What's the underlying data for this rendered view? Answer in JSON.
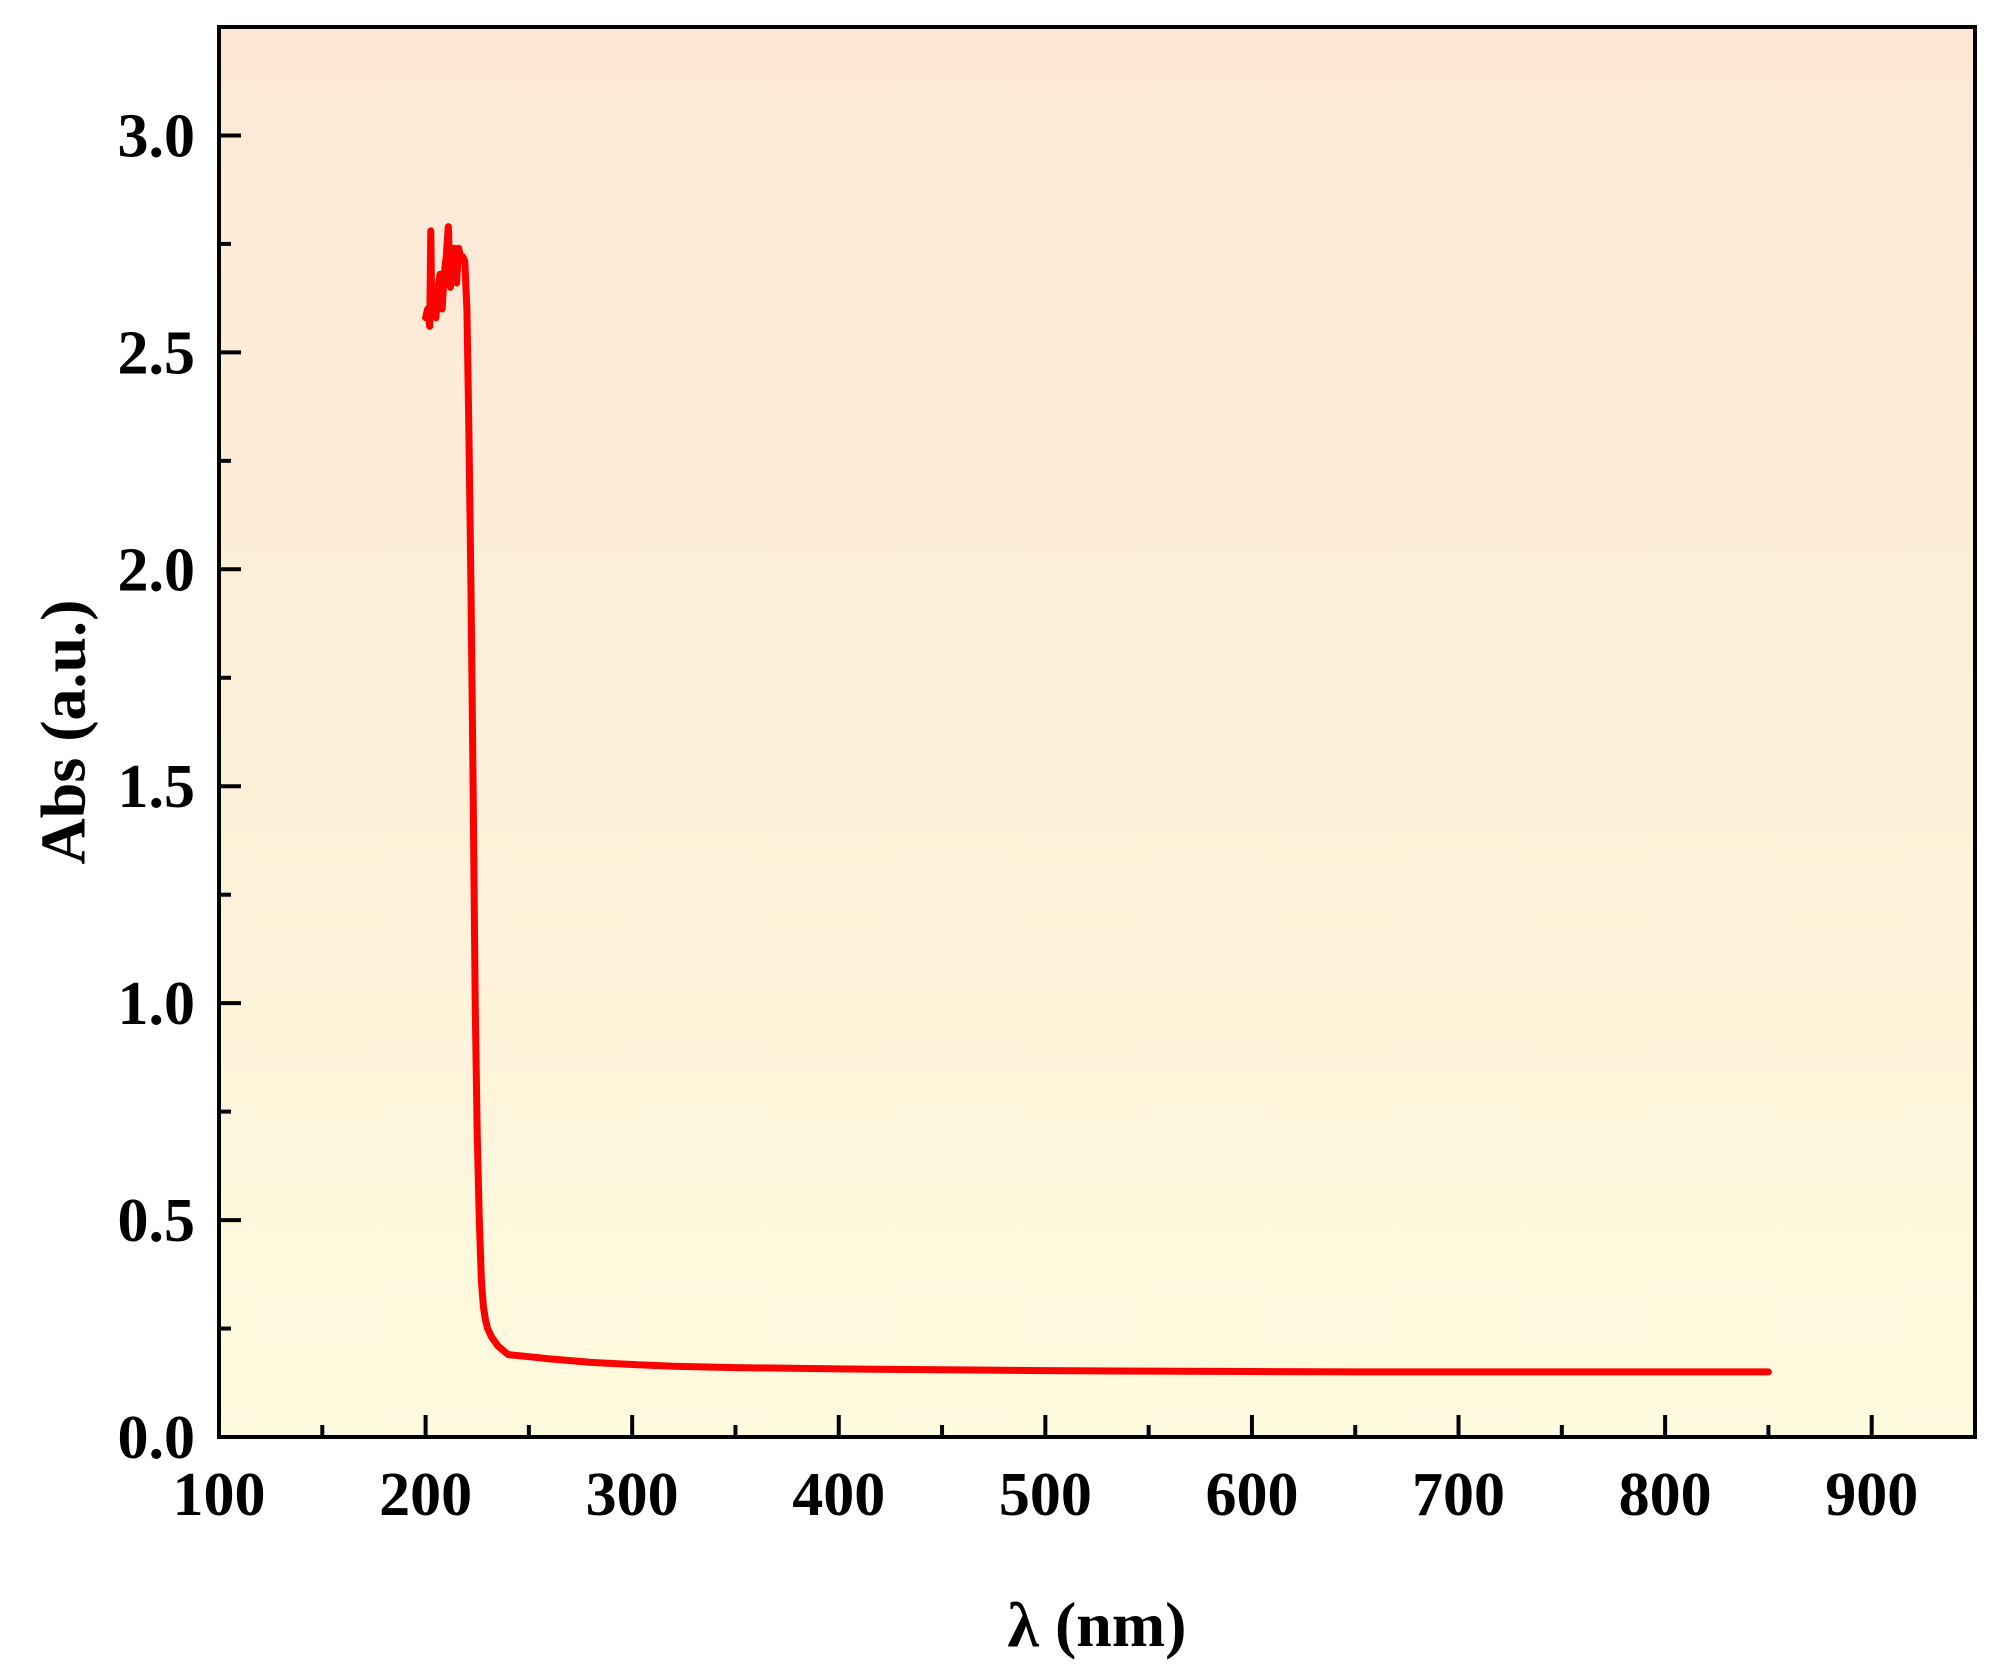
{
  "chart_data": {
    "type": "line",
    "title": "",
    "xlabel": "λ (nm)",
    "ylabel": "Abs (a.u.)",
    "xlim": [
      100,
      950
    ],
    "ylim": [
      0,
      3.25
    ],
    "x_ticks": [
      100,
      200,
      300,
      400,
      500,
      600,
      700,
      800,
      900
    ],
    "x_tick_labels": [
      "100",
      "200",
      "300",
      "400",
      "500",
      "600",
      "700",
      "800",
      "900"
    ],
    "y_ticks": [
      0,
      0.5,
      1.0,
      1.5,
      2.0,
      2.5,
      3.0
    ],
    "y_tick_labels": [
      "0.0",
      "0.5",
      "1.0",
      "1.5",
      "2.0",
      "2.5",
      "3.0"
    ],
    "x_minor_step": 50,
    "y_minor_step": 0.25,
    "grid": false,
    "legend": "none",
    "background_gradient": [
      "#fde8d8",
      "#fffbdf"
    ],
    "series": [
      {
        "color": "#ff0000",
        "x": [
          200,
          201,
          202,
          202.5,
          203,
          204,
          205,
          206,
          207,
          208,
          209,
          210,
          211,
          212,
          213,
          214,
          215,
          216,
          217,
          218,
          219,
          220,
          221,
          222,
          223,
          224,
          225,
          226,
          227,
          228,
          229,
          230,
          232,
          235,
          240,
          250,
          260,
          280,
          300,
          320,
          350,
          400,
          450,
          500,
          550,
          600,
          650,
          700,
          750,
          800,
          850
        ],
        "y": [
          2.58,
          2.6,
          2.56,
          2.78,
          2.59,
          2.6,
          2.58,
          2.65,
          2.68,
          2.6,
          2.68,
          2.72,
          2.79,
          2.65,
          2.71,
          2.74,
          2.66,
          2.74,
          2.72,
          2.72,
          2.71,
          2.6,
          2.3,
          1.95,
          1.5,
          1.0,
          0.7,
          0.5,
          0.36,
          0.3,
          0.27,
          0.25,
          0.23,
          0.21,
          0.19,
          0.185,
          0.18,
          0.172,
          0.167,
          0.163,
          0.16,
          0.157,
          0.155,
          0.153,
          0.152,
          0.151,
          0.15,
          0.15,
          0.15,
          0.15,
          0.15
        ]
      }
    ]
  }
}
